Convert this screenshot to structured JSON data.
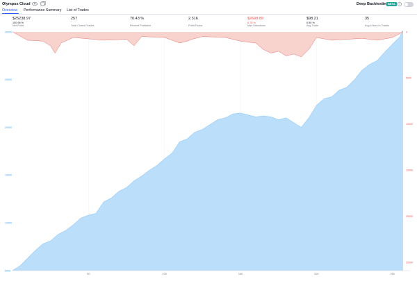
{
  "header": {
    "strategy_name": "Olympus Cloud",
    "deep_backtesting_label": "Deep Backtesting",
    "beta_badge": "BETA"
  },
  "tabs": [
    {
      "label": "Overview",
      "active": true
    },
    {
      "label": "Performance Summary",
      "active": false
    },
    {
      "label": "List of Trades",
      "active": false
    }
  ],
  "stats": [
    {
      "value": "$25238.97",
      "sub": "100.96 %",
      "label": "Net Profit",
      "negative": false
    },
    {
      "value": "257",
      "sub": "",
      "label": "Total Closed Trades",
      "negative": false
    },
    {
      "value": "70.43 %",
      "sub": "",
      "label": "Percent Profitable",
      "negative": false
    },
    {
      "value": "2.316",
      "sub": "",
      "label": "Profit Factor",
      "negative": false
    },
    {
      "value": "$2698.89",
      "sub": "8.75 %",
      "label": "Max Drawdown",
      "negative": true
    },
    {
      "value": "$98.21",
      "sub": "0.90 %",
      "label": "Avg Trade",
      "negative": false
    },
    {
      "value": "35",
      "sub": "",
      "label": "Avg # Bars in Trades",
      "negative": false
    }
  ],
  "colors": {
    "equity_fill": "#bbdefb",
    "equity_line": "#90caf9",
    "drawdown_fill": "#f8d3cd",
    "drawdown_line": "#e57373",
    "positive_text": "#131722",
    "negative_text": "#ef5350",
    "left_axis": "#42a5f5",
    "right_axis": "#ef5350",
    "active_tab": "#2962ff"
  },
  "chart_data": {
    "type": "area",
    "title": "",
    "x_ticks": [
      50,
      100,
      150,
      200,
      250
    ],
    "xlim": [
      0,
      257
    ],
    "left_axis": {
      "labels": [
        "30000",
        "25000",
        "20000",
        "15000",
        "10000",
        "5000"
      ],
      "range": [
        5000,
        30000
      ]
    },
    "right_axis": {
      "labels": [
        "0",
        "5000",
        "10000",
        "15000",
        "20000",
        "25000"
      ],
      "range": [
        0,
        25000
      ],
      "inverted": true
    },
    "series": [
      {
        "axis": "left",
        "x": [
          0,
          5,
          10,
          15,
          20,
          25,
          30,
          35,
          40,
          45,
          50,
          55,
          60,
          65,
          70,
          75,
          80,
          85,
          90,
          95,
          100,
          105,
          110,
          115,
          120,
          125,
          130,
          135,
          140,
          145,
          150,
          155,
          160,
          165,
          170,
          175,
          180,
          185,
          190,
          195,
          200,
          205,
          210,
          215,
          220,
          225,
          230,
          235,
          240,
          245,
          250,
          255,
          257
        ],
        "values": [
          5000,
          5500,
          6300,
          7100,
          7800,
          8100,
          8800,
          9200,
          9800,
          10500,
          10800,
          11000,
          12200,
          12600,
          13300,
          13700,
          14400,
          14900,
          15500,
          16000,
          16700,
          17300,
          18500,
          18800,
          19500,
          19800,
          20300,
          20800,
          21000,
          21400,
          21500,
          21300,
          21100,
          21200,
          21100,
          20800,
          21000,
          20500,
          20000,
          21000,
          22300,
          23000,
          23200,
          23900,
          24200,
          25000,
          26000,
          26600,
          27000,
          27900,
          28700,
          29500,
          30300
        ]
      },
      {
        "axis": "right",
        "x": [
          0,
          10,
          20,
          25,
          28,
          32,
          40,
          60,
          75,
          80,
          85,
          100,
          110,
          115,
          118,
          125,
          140,
          150,
          160,
          165,
          170,
          175,
          180,
          185,
          190,
          195,
          200,
          210,
          220,
          230,
          240,
          250,
          257
        ],
        "values": [
          0,
          900,
          1000,
          1500,
          2300,
          1200,
          600,
          900,
          800,
          1500,
          500,
          600,
          1200,
          1000,
          800,
          500,
          600,
          1000,
          1200,
          1900,
          2300,
          2100,
          2600,
          2400,
          2698.89,
          1900,
          600,
          900,
          800,
          700,
          900,
          600,
          0
        ]
      }
    ]
  }
}
